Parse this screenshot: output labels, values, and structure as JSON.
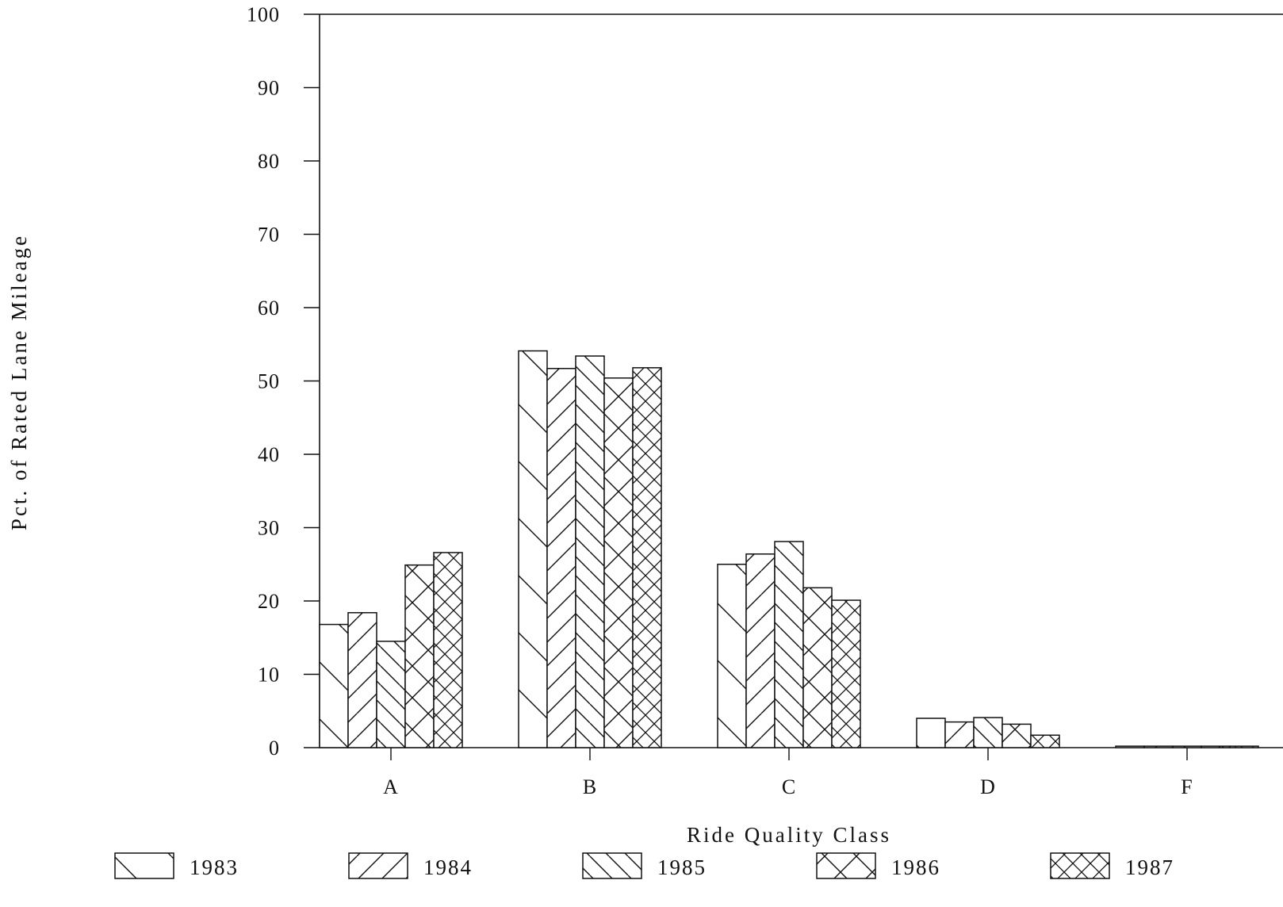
{
  "chart_data": {
    "type": "bar",
    "categories": [
      "A",
      "B",
      "C",
      "D",
      "F"
    ],
    "series": [
      {
        "name": "1983",
        "values": [
          16.8,
          54.1,
          25.0,
          4.0,
          0.2
        ]
      },
      {
        "name": "1984",
        "values": [
          18.4,
          51.7,
          26.4,
          3.5,
          0.2
        ]
      },
      {
        "name": "1985",
        "values": [
          14.5,
          53.4,
          28.1,
          4.1,
          0.2
        ]
      },
      {
        "name": "1986",
        "values": [
          24.9,
          50.4,
          21.8,
          3.2,
          0.2
        ]
      },
      {
        "name": "1987",
        "values": [
          26.6,
          51.8,
          20.1,
          1.7,
          0.2
        ]
      }
    ],
    "xlabel": "Ride Quality Class",
    "ylabel": "Pct. of Rated Lane Mileage",
    "ylim": [
      0,
      100
    ],
    "yticks": [
      0,
      10,
      20,
      30,
      40,
      50,
      60,
      70,
      80,
      90,
      100
    ],
    "grid": false,
    "legend_position": "bottom",
    "bar_fill": "#ffffff",
    "line_color": "#111111"
  }
}
